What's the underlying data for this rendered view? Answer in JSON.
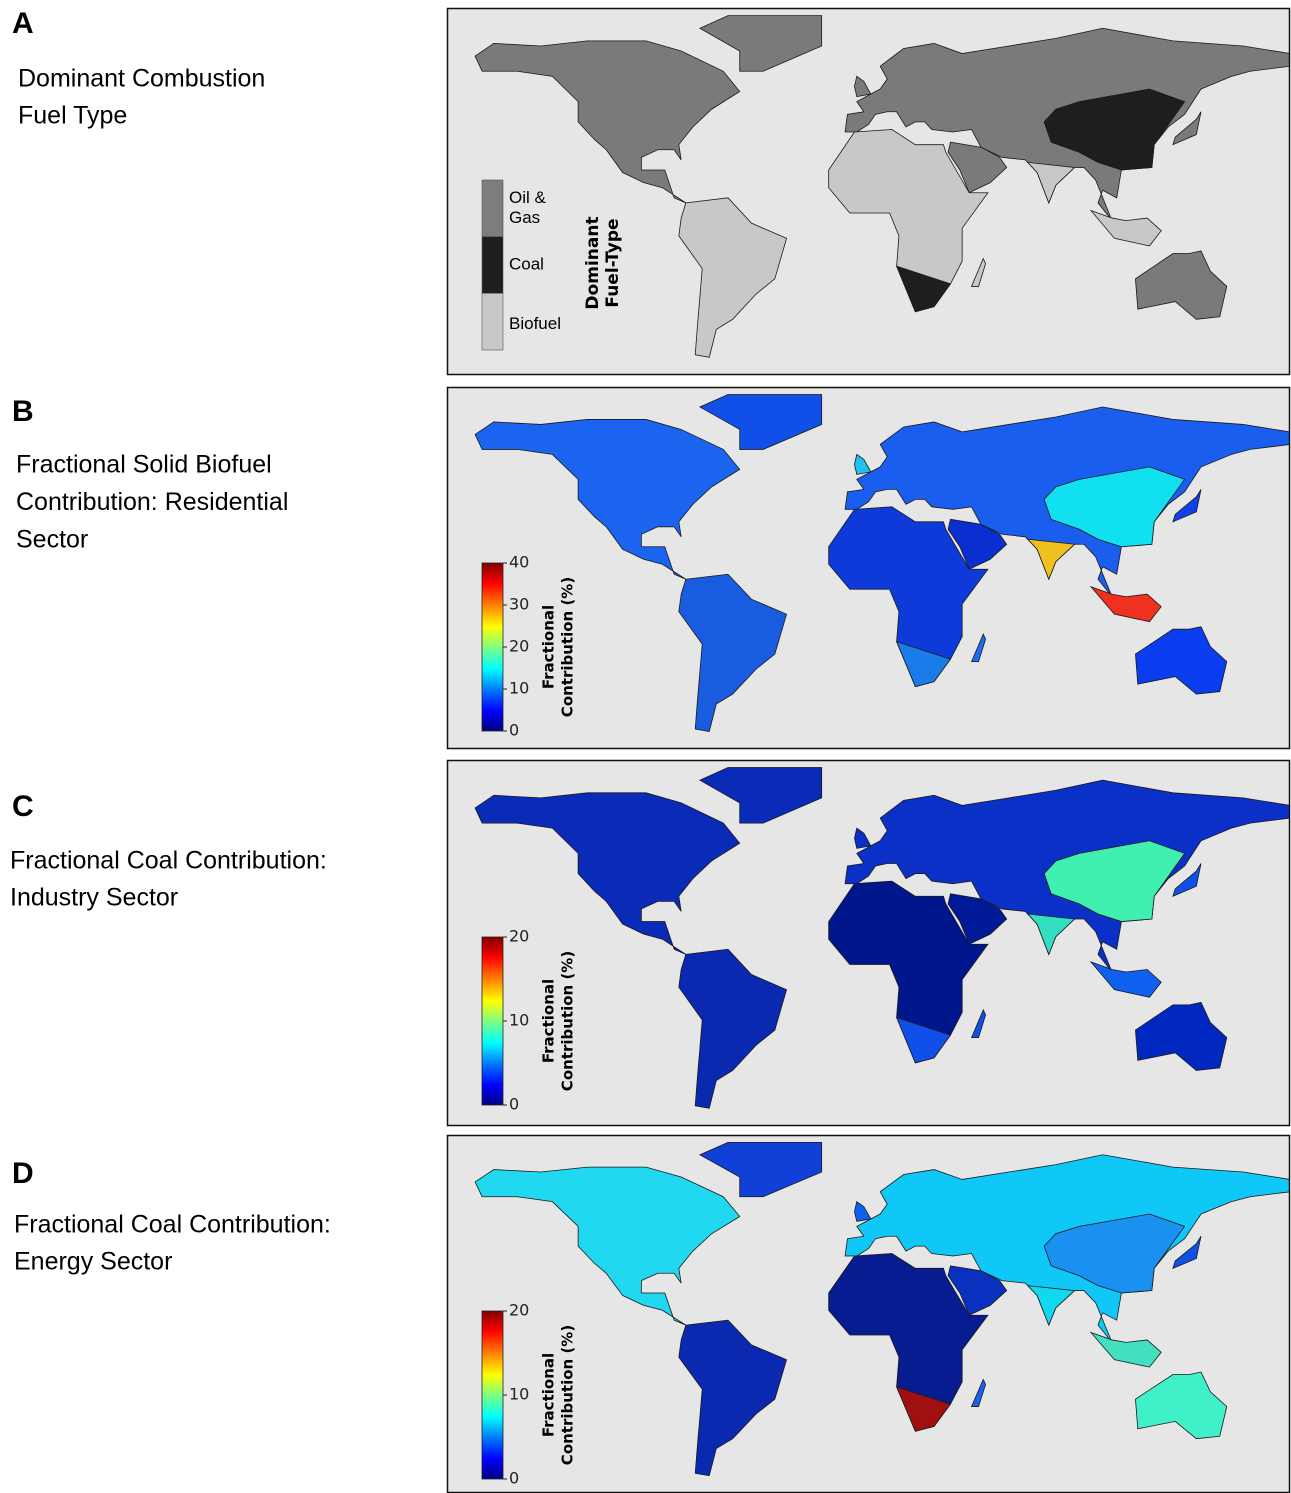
{
  "panels": [
    {
      "letter": "A",
      "title": [
        "Dominant Combustion",
        "Fuel Type"
      ],
      "legend": {
        "title": [
          "Dominant",
          "Fuel-Type"
        ],
        "items": [
          [
            "Oil &",
            "Gas"
          ],
          [
            "Coal"
          ],
          [
            "Biofuel"
          ]
        ]
      }
    },
    {
      "letter": "B",
      "title": [
        "Fractional Solid Biofuel",
        "Contribution: Residential",
        "Sector"
      ],
      "colorbar": {
        "title": [
          "Fractional",
          "Contribution (%)"
        ],
        "ticks": [
          0,
          10,
          20,
          30,
          40
        ]
      }
    },
    {
      "letter": "C",
      "title": [
        "Fractional Coal Contribution:",
        "Industry Sector"
      ],
      "colorbar": {
        "title": [
          "Fractional",
          "Contribution (%)"
        ],
        "ticks": [
          0,
          10,
          20
        ]
      }
    },
    {
      "letter": "D",
      "title": [
        "Fractional Coal Contribution:",
        "Energy Sector"
      ],
      "colorbar": {
        "title": [
          "Fractional",
          "Contribution (%)"
        ],
        "ticks": [
          0,
          10,
          20
        ]
      }
    }
  ]
}
